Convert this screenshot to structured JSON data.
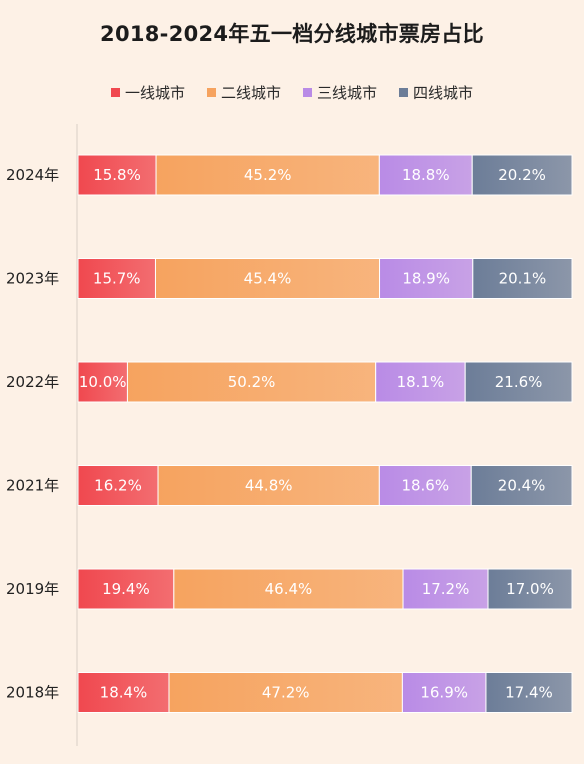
{
  "chart_data": {
    "type": "bar",
    "orientation": "horizontal",
    "stacked": true,
    "title": "2018-2024年五一档分线城市票房占比",
    "categories": [
      "2024年",
      "2023年",
      "2022年",
      "2021年",
      "2019年",
      "2018年"
    ],
    "series": [
      {
        "name": "一线城市",
        "color": "#f0484f",
        "values": [
          15.8,
          15.7,
          10.0,
          16.2,
          19.4,
          18.4
        ],
        "labels": [
          "15.8%",
          "15.7%",
          "10.0%",
          "16.2%",
          "19.4%",
          "18.4%"
        ]
      },
      {
        "name": "二线城市",
        "color": "#f6a35f",
        "values": [
          45.2,
          45.4,
          50.2,
          44.8,
          46.4,
          47.2
        ],
        "labels": [
          "45.2%",
          "45.4%",
          "50.2%",
          "44.8%",
          "46.4%",
          "47.2%"
        ]
      },
      {
        "name": "三线城市",
        "color": "#b98be6",
        "values": [
          18.8,
          18.9,
          18.1,
          18.6,
          17.2,
          16.9
        ],
        "labels": [
          "18.8%",
          "18.9%",
          "18.1%",
          "18.6%",
          "17.2%",
          "16.9%"
        ]
      },
      {
        "name": "四线城市",
        "color": "#6c7d98",
        "values": [
          20.2,
          20.1,
          21.6,
          20.4,
          17.0,
          17.4
        ],
        "labels": [
          "20.2%",
          "20.1%",
          "21.6%",
          "20.4%",
          "17.0%",
          "17.4%"
        ]
      }
    ],
    "legend_position": "top-center",
    "grid": false
  }
}
